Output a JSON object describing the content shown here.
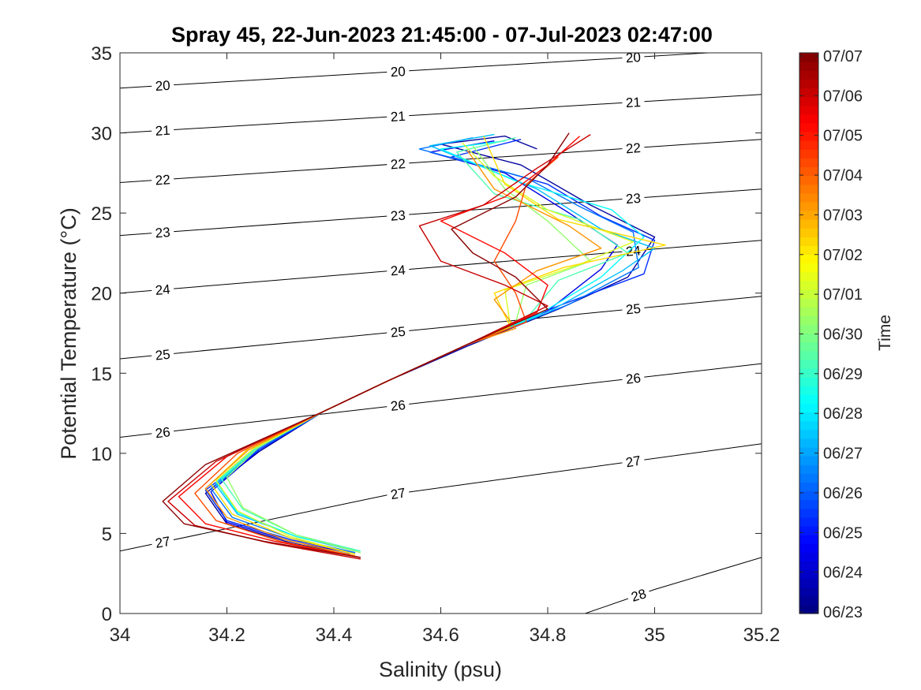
{
  "chart_data": {
    "type": "line",
    "title": "Spray 45, 22-Jun-2023 21:45:00 - 07-Jul-2023 02:47:00",
    "xlabel": "Salinity (psu)",
    "ylabel": "Potential Temperature (°C)",
    "xlim": [
      34,
      35.2
    ],
    "ylim": [
      0,
      35
    ],
    "xticks": [
      "34",
      "34.2",
      "34.4",
      "34.6",
      "34.8",
      "35",
      "35.2"
    ],
    "yticks": [
      "0",
      "5",
      "10",
      "15",
      "20",
      "25",
      "30",
      "35"
    ],
    "grid": false,
    "density_contours": {
      "levels": [
        20,
        21,
        22,
        23,
        24,
        25,
        26,
        27,
        28
      ],
      "labels": [
        "20",
        "21",
        "22",
        "23",
        "24",
        "25",
        "26",
        "27",
        "28"
      ],
      "lines": [
        {
          "level": 20,
          "points": [
            [
              34,
              32.8
            ],
            [
              35.1,
              35
            ]
          ]
        },
        {
          "level": 21,
          "points": [
            [
              34,
              30
            ],
            [
              35.2,
              32.4
            ]
          ]
        },
        {
          "level": 22,
          "points": [
            [
              34,
              26.9
            ],
            [
              35.2,
              29.6
            ]
          ]
        },
        {
          "level": 23,
          "points": [
            [
              34,
              23.6
            ],
            [
              35.2,
              26.5
            ]
          ]
        },
        {
          "level": 24,
          "points": [
            [
              34,
              20.0
            ],
            [
              35.2,
              23.3
            ]
          ]
        },
        {
          "level": 25,
          "points": [
            [
              34,
              15.9
            ],
            [
              35.2,
              19.8
            ]
          ]
        },
        {
          "level": 26,
          "points": [
            [
              34,
              11.0
            ],
            [
              35.2,
              15.6
            ]
          ]
        },
        {
          "level": 27,
          "points": [
            [
              34,
              3.9
            ],
            [
              34.5,
              7.4
            ],
            [
              35.2,
              10.6
            ]
          ]
        },
        {
          "level": 28,
          "points": [
            [
              34.87,
              0
            ],
            [
              35.0,
              1.5
            ],
            [
              35.2,
              3.5
            ]
          ]
        }
      ]
    },
    "colorbar": {
      "label": "Time",
      "colormap": "jet",
      "ticks": [
        "06/23",
        "06/24",
        "06/25",
        "06/26",
        "06/27",
        "06/28",
        "06/29",
        "06/30",
        "07/01",
        "07/02",
        "07/03",
        "07/04",
        "07/05",
        "07/06",
        "07/07"
      ]
    },
    "series": [
      {
        "date": "06/23",
        "t": 0.03,
        "values": [
          [
            34.43,
            3.7
          ],
          [
            34.32,
            4.4
          ],
          [
            34.2,
            5.6
          ],
          [
            34.16,
            7.5
          ],
          [
            34.26,
            10.1
          ],
          [
            34.38,
            12.6
          ],
          [
            34.5,
            14.5
          ],
          [
            34.65,
            16.7
          ],
          [
            34.82,
            19.0
          ],
          [
            34.95,
            21.0
          ],
          [
            35.0,
            23.5
          ],
          [
            34.88,
            25.5
          ],
          [
            34.75,
            28.0
          ],
          [
            34.6,
            29.3
          ],
          [
            34.72,
            29.8
          ],
          [
            34.78,
            29.0
          ]
        ]
      },
      {
        "date": "06/24",
        "t": 0.1,
        "values": [
          [
            34.43,
            3.8
          ],
          [
            34.32,
            4.5
          ],
          [
            34.2,
            5.7
          ],
          [
            34.17,
            7.6
          ],
          [
            34.26,
            10.2
          ],
          [
            34.38,
            12.6
          ],
          [
            34.5,
            14.5
          ],
          [
            34.65,
            16.8
          ],
          [
            34.8,
            18.9
          ],
          [
            34.9,
            21.5
          ],
          [
            34.93,
            23.0
          ],
          [
            34.84,
            25.0
          ],
          [
            34.72,
            27.5
          ],
          [
            34.58,
            28.8
          ],
          [
            34.7,
            29.5
          ]
        ]
      },
      {
        "date": "06/25",
        "t": 0.17,
        "values": [
          [
            34.44,
            3.8
          ],
          [
            34.32,
            4.6
          ],
          [
            34.2,
            5.8
          ],
          [
            34.16,
            7.7
          ],
          [
            34.26,
            10.2
          ],
          [
            34.38,
            12.6
          ],
          [
            34.5,
            14.5
          ],
          [
            34.65,
            16.8
          ],
          [
            34.82,
            19.2
          ],
          [
            34.98,
            21.2
          ],
          [
            35.0,
            23.3
          ],
          [
            34.9,
            24.8
          ],
          [
            34.8,
            26.8
          ],
          [
            34.62,
            28.5
          ],
          [
            34.75,
            29.6
          ]
        ]
      },
      {
        "date": "06/26",
        "t": 0.24,
        "values": [
          [
            34.44,
            3.8
          ],
          [
            34.32,
            4.7
          ],
          [
            34.21,
            6.0
          ],
          [
            34.17,
            7.8
          ],
          [
            34.26,
            10.3
          ],
          [
            34.38,
            12.6
          ],
          [
            34.5,
            14.5
          ],
          [
            34.65,
            16.8
          ],
          [
            34.84,
            19.3
          ],
          [
            34.97,
            21.6
          ],
          [
            34.96,
            23.8
          ],
          [
            34.86,
            25.4
          ],
          [
            34.76,
            27.2
          ],
          [
            34.56,
            29.0
          ],
          [
            34.66,
            29.7
          ]
        ]
      },
      {
        "date": "06/27",
        "t": 0.31,
        "values": [
          [
            34.44,
            3.9
          ],
          [
            34.33,
            4.8
          ],
          [
            34.22,
            6.2
          ],
          [
            34.18,
            8.0
          ],
          [
            34.26,
            10.4
          ],
          [
            34.38,
            12.6
          ],
          [
            34.5,
            14.5
          ],
          [
            34.65,
            16.8
          ],
          [
            34.8,
            18.8
          ],
          [
            34.94,
            21.4
          ],
          [
            35.0,
            22.8
          ],
          [
            34.9,
            24.0
          ],
          [
            34.78,
            26.5
          ],
          [
            34.58,
            29.2
          ],
          [
            34.7,
            29.9
          ]
        ]
      },
      {
        "date": "06/28",
        "t": 0.38,
        "values": [
          [
            34.45,
            3.9
          ],
          [
            34.33,
            4.8
          ],
          [
            34.22,
            6.3
          ],
          [
            34.18,
            8.2
          ],
          [
            34.26,
            10.5
          ],
          [
            34.38,
            12.6
          ],
          [
            34.5,
            14.5
          ],
          [
            34.65,
            16.8
          ],
          [
            34.78,
            18.6
          ],
          [
            34.9,
            21.0
          ],
          [
            34.98,
            23.5
          ],
          [
            34.92,
            25.2
          ],
          [
            34.74,
            27.0
          ],
          [
            34.6,
            29.0
          ],
          [
            34.72,
            29.5
          ]
        ]
      },
      {
        "date": "06/29",
        "t": 0.45,
        "values": [
          [
            34.45,
            3.9
          ],
          [
            34.33,
            4.9
          ],
          [
            34.23,
            6.5
          ],
          [
            34.19,
            8.4
          ],
          [
            34.26,
            10.5
          ],
          [
            34.38,
            12.6
          ],
          [
            34.5,
            14.5
          ],
          [
            34.65,
            16.8
          ],
          [
            34.76,
            18.4
          ],
          [
            34.82,
            20.8
          ],
          [
            34.95,
            22.5
          ],
          [
            34.86,
            24.6
          ],
          [
            34.7,
            26.2
          ],
          [
            34.63,
            28.8
          ],
          [
            34.74,
            29.7
          ]
        ]
      },
      {
        "date": "06/30",
        "t": 0.52,
        "values": [
          [
            34.45,
            3.8
          ],
          [
            34.33,
            4.9
          ],
          [
            34.23,
            6.6
          ],
          [
            34.2,
            8.5
          ],
          [
            34.26,
            10.4
          ],
          [
            34.38,
            12.6
          ],
          [
            34.5,
            14.5
          ],
          [
            34.65,
            16.8
          ],
          [
            34.74,
            18.2
          ],
          [
            34.76,
            20.5
          ],
          [
            34.88,
            22.0
          ],
          [
            34.8,
            24.5
          ],
          [
            34.72,
            26.5
          ],
          [
            34.66,
            29.2
          ]
        ]
      },
      {
        "date": "07/01",
        "t": 0.59,
        "values": [
          [
            34.44,
            3.7
          ],
          [
            34.32,
            4.8
          ],
          [
            34.22,
            6.4
          ],
          [
            34.18,
            8.3
          ],
          [
            34.25,
            10.3
          ],
          [
            34.38,
            12.6
          ],
          [
            34.5,
            14.5
          ],
          [
            34.65,
            16.8
          ],
          [
            34.73,
            18.0
          ],
          [
            34.72,
            20.2
          ],
          [
            34.86,
            21.8
          ],
          [
            34.96,
            23.2
          ],
          [
            34.8,
            25.2
          ],
          [
            34.7,
            27.3
          ],
          [
            34.64,
            29.4
          ]
        ]
      },
      {
        "date": "07/02",
        "t": 0.66,
        "values": [
          [
            34.44,
            3.7
          ],
          [
            34.32,
            4.7
          ],
          [
            34.21,
            6.2
          ],
          [
            34.17,
            8.1
          ],
          [
            34.24,
            10.3
          ],
          [
            34.38,
            12.6
          ],
          [
            34.5,
            14.5
          ],
          [
            34.65,
            16.8
          ],
          [
            34.73,
            17.9
          ],
          [
            34.7,
            20.0
          ],
          [
            34.83,
            21.6
          ],
          [
            35.02,
            23.0
          ],
          [
            34.82,
            24.6
          ],
          [
            34.72,
            26.8
          ],
          [
            34.68,
            29.8
          ]
        ]
      },
      {
        "date": "07/03",
        "t": 0.73,
        "values": [
          [
            34.44,
            3.6
          ],
          [
            34.31,
            4.6
          ],
          [
            34.2,
            6.0
          ],
          [
            34.16,
            7.8
          ],
          [
            34.24,
            10.2
          ],
          [
            34.38,
            12.6
          ],
          [
            34.5,
            14.5
          ],
          [
            34.65,
            16.8
          ],
          [
            34.74,
            17.8
          ],
          [
            34.7,
            19.6
          ],
          [
            34.78,
            21.4
          ],
          [
            34.9,
            22.8
          ],
          [
            34.84,
            24.2
          ],
          [
            34.7,
            26.5
          ],
          [
            34.65,
            28.9
          ]
        ]
      },
      {
        "date": "07/04",
        "t": 0.8,
        "values": [
          [
            34.45,
            3.5
          ],
          [
            34.3,
            4.5
          ],
          [
            34.18,
            5.8
          ],
          [
            34.14,
            7.5
          ],
          [
            34.22,
            10.0
          ],
          [
            34.38,
            12.6
          ],
          [
            34.5,
            14.5
          ],
          [
            34.65,
            16.8
          ],
          [
            34.76,
            18.2
          ],
          [
            34.74,
            20.0
          ],
          [
            34.7,
            22.0
          ],
          [
            34.74,
            24.5
          ],
          [
            34.76,
            26.8
          ],
          [
            34.82,
            28.5
          ]
        ]
      },
      {
        "date": "07/05",
        "t": 0.87,
        "values": [
          [
            34.45,
            3.5
          ],
          [
            34.29,
            4.5
          ],
          [
            34.16,
            5.6
          ],
          [
            34.11,
            7.3
          ],
          [
            34.2,
            9.8
          ],
          [
            34.38,
            12.6
          ],
          [
            34.5,
            14.5
          ],
          [
            34.65,
            16.8
          ],
          [
            34.78,
            18.8
          ],
          [
            34.8,
            20.5
          ],
          [
            34.72,
            22.5
          ],
          [
            34.6,
            24.5
          ],
          [
            34.72,
            26.0
          ],
          [
            34.8,
            28.0
          ],
          [
            34.86,
            29.8
          ]
        ]
      },
      {
        "date": "07/06",
        "t": 0.93,
        "values": [
          [
            34.45,
            3.4
          ],
          [
            34.28,
            4.4
          ],
          [
            34.14,
            5.5
          ],
          [
            34.09,
            7.0
          ],
          [
            34.18,
            9.5
          ],
          [
            34.38,
            12.6
          ],
          [
            34.5,
            14.5
          ],
          [
            34.65,
            16.8
          ],
          [
            34.8,
            19.2
          ],
          [
            34.72,
            20.5
          ],
          [
            34.6,
            22.0
          ],
          [
            34.56,
            24.2
          ],
          [
            34.68,
            25.5
          ],
          [
            34.78,
            27.8
          ],
          [
            34.88,
            29.9
          ]
        ]
      },
      {
        "date": "07/07",
        "t": 0.99,
        "values": [
          [
            34.45,
            3.5
          ],
          [
            34.27,
            4.5
          ],
          [
            34.12,
            5.6
          ],
          [
            34.08,
            7.0
          ],
          [
            34.16,
            9.3
          ],
          [
            34.38,
            12.6
          ],
          [
            34.5,
            14.5
          ],
          [
            34.65,
            16.8
          ],
          [
            34.8,
            19.0
          ],
          [
            34.74,
            21.0
          ],
          [
            34.66,
            22.5
          ],
          [
            34.62,
            24.0
          ],
          [
            34.74,
            26.0
          ],
          [
            34.8,
            28.0
          ],
          [
            34.84,
            30.0
          ]
        ]
      }
    ]
  }
}
